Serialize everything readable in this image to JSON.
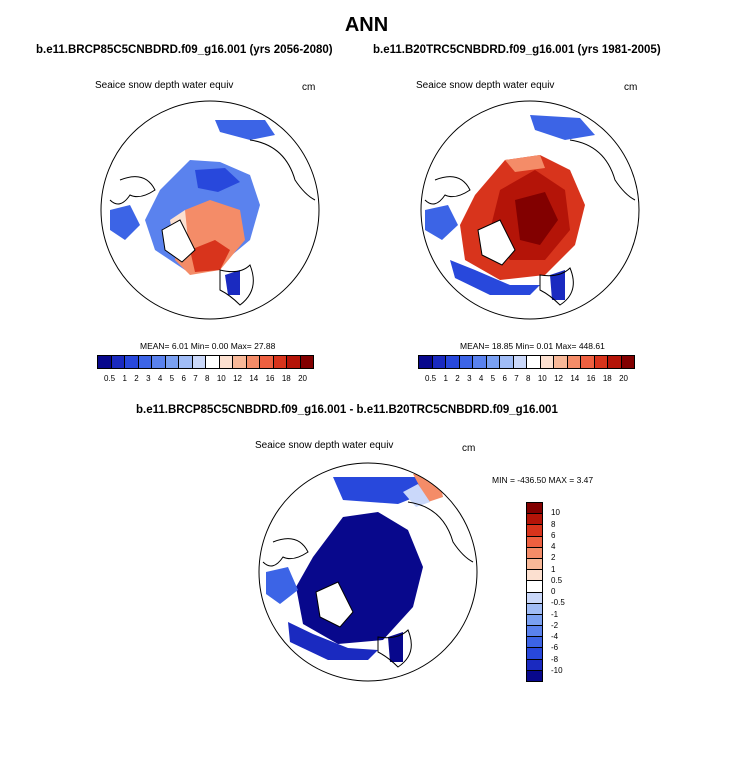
{
  "title": "ANN",
  "panels": {
    "left": {
      "title": "b.e11.BRCP85C5CNBDRD.f09_g16.001 (yrs 2056-2080)",
      "variable": "Seaice snow depth water equiv",
      "units": "cm",
      "stats": "MEAN=   6.01  Min=   0.00  Max=  27.88"
    },
    "right": {
      "title": "b.e11.B20TRC5CNBDRD.f09_g16.001 (yrs 1981-2005)",
      "variable": "Seaice snow depth water equiv",
      "units": "cm",
      "stats": "MEAN=  18.85  Min=   0.01  Max= 448.61"
    },
    "diff": {
      "title": "b.e11.BRCP85C5CNBDRD.f09_g16.001 - b.e11.B20TRC5CNBDRD.f09_g16.001",
      "variable": "Seaice snow depth water equiv",
      "units": "cm",
      "stats": "MIN = -436.50 MAX =   3.47"
    }
  },
  "abs_colorbar": {
    "labels": [
      "0.5",
      "1",
      "2",
      "3",
      "4",
      "5",
      "6",
      "7",
      "8",
      "10",
      "12",
      "14",
      "16",
      "18",
      "20"
    ],
    "colors": [
      "#08088c",
      "#1a2ac0",
      "#2848dc",
      "#3c64e6",
      "#5a82ee",
      "#7aa0f2",
      "#a0bcf6",
      "#cad8fa",
      "#ffffff",
      "#fce0d0",
      "#f8b898",
      "#f48c68",
      "#ee6040",
      "#d8341c",
      "#b41408",
      "#820000"
    ]
  },
  "diff_colorbar": {
    "labels": [
      "10",
      "8",
      "6",
      "4",
      "2",
      "1",
      "0.5",
      "0",
      "-0.5",
      "-1",
      "-2",
      "-4",
      "-6",
      "-8",
      "-10"
    ],
    "colors": [
      "#820000",
      "#b41408",
      "#d8341c",
      "#ee6040",
      "#f48c68",
      "#f8b898",
      "#fce0d0",
      "#ffffff",
      "#cad8fa",
      "#a0bcf6",
      "#7aa0f2",
      "#5a82ee",
      "#3c64e6",
      "#2848dc",
      "#1a2ac0",
      "#08088c"
    ]
  }
}
